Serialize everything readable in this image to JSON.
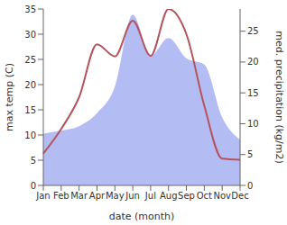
{
  "chart_data": {
    "type": "line",
    "categories": [
      "Jan",
      "Feb",
      "Mar",
      "Apr",
      "May",
      "Jun",
      "Jul",
      "Aug",
      "Sep",
      "Oct",
      "Nov",
      "Dec"
    ],
    "x_label": "date (month)",
    "y_label": "max temp (C)",
    "y2_label": "med. precipitation (kg/m2)",
    "ylim": [
      0,
      35
    ],
    "yticks": [
      0,
      5,
      10,
      15,
      20,
      25,
      30,
      35
    ],
    "y2lim": [
      0,
      28.6
    ],
    "y2ticks": [
      0,
      5,
      10,
      15,
      20,
      25
    ],
    "grid": false,
    "series": [
      {
        "name": "med. precipitation (kg/m2)",
        "type": "area",
        "axis": "y2",
        "color": "#b4bcf4",
        "values": [
          8.4,
          8.9,
          9.6,
          11.7,
          16,
          27.7,
          21,
          23.9,
          20.6,
          19.6,
          11,
          7.4
        ]
      },
      {
        "name": "max temp (C)",
        "type": "line",
        "axis": "y",
        "color": "#b5535d",
        "values": [
          6.3,
          11.2,
          17.5,
          28,
          25.6,
          32.7,
          25.7,
          35,
          30,
          15.8,
          5.3,
          5.1
        ]
      }
    ]
  }
}
